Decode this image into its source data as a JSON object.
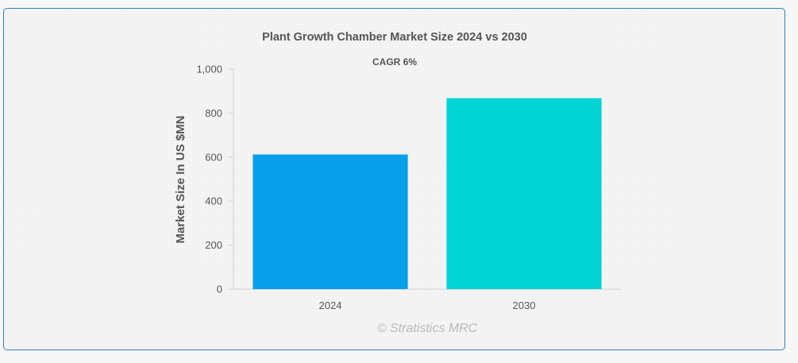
{
  "chart_data": {
    "type": "bar",
    "title": "Plant Growth Chamber Market Size 2024 vs 2030",
    "subtitle": "CAGR 6%",
    "ylabel": "Market Size In US $MN",
    "xlabel": "",
    "categories": [
      "2024",
      "2030"
    ],
    "values": [
      612,
      868
    ],
    "ylim": [
      0,
      1000
    ],
    "yticks": [
      0,
      200,
      400,
      600,
      800,
      1000
    ],
    "ytick_labels": [
      "0",
      "200",
      "400",
      "600",
      "800",
      "1,000"
    ],
    "colors": [
      "#079fea",
      "#00d3d3"
    ],
    "grid": false,
    "legend": "none"
  },
  "watermark": "© Stratistics MRC"
}
